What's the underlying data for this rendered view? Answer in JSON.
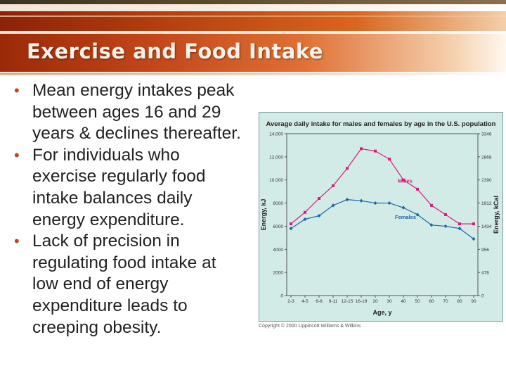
{
  "slide": {
    "title": "Exercise and Food Intake",
    "bullets": [
      "Mean energy intakes peak between ages 16 and 29 years & declines thereafter.",
      "For individuals who exercise regularly food intake balances daily energy expenditure.",
      "Lack of precision in regulating food intake at low end of energy expenditure leads to creeping obesity."
    ],
    "bullet_symbol": "•",
    "copyright": "Copyright © 2000 Lippincott Williams & Wilkins"
  },
  "colors": {
    "accent": "#c0461a",
    "chart_bg": "#d3ebe7",
    "chart_border": "#7a9aa0",
    "males": "#d81b7c",
    "females": "#1f66a8",
    "axis": "#333333"
  },
  "chart_data": {
    "type": "line",
    "title": "Average daily intake for males and females by age in the U.S. population",
    "xlabel": "Age, y",
    "ylabel": "Energy, kJ",
    "ylabel_right": "Energy, kCal",
    "categories": [
      "2-3",
      "4-5",
      "6-8",
      "9-11",
      "12-15",
      "16-19",
      "20",
      "30",
      "40",
      "50",
      "60",
      "70",
      "80",
      "90"
    ],
    "ylim": [
      0,
      14000
    ],
    "yticks": [
      0,
      2000,
      4000,
      6000,
      8000,
      10000,
      12000,
      14000
    ],
    "ytick_labels": [
      "0",
      "2000",
      "4000",
      "6000",
      "8000",
      "10,000",
      "12,000",
      "14,000"
    ],
    "right_tick_labels": [
      "0",
      "478",
      "956",
      "1434",
      "1912",
      "2390",
      "2868",
      "3346"
    ],
    "grid": false,
    "series": [
      {
        "name": "Males",
        "values": [
          6200,
          7200,
          8400,
          9500,
          11000,
          12700,
          12500,
          11800,
          10000,
          9200,
          7800,
          7000,
          6200,
          6200
        ]
      },
      {
        "name": "Females",
        "values": [
          5800,
          6600,
          6900,
          7800,
          8300,
          8200,
          8000,
          8000,
          7600,
          7000,
          6100,
          6000,
          5800,
          4900
        ]
      }
    ]
  }
}
